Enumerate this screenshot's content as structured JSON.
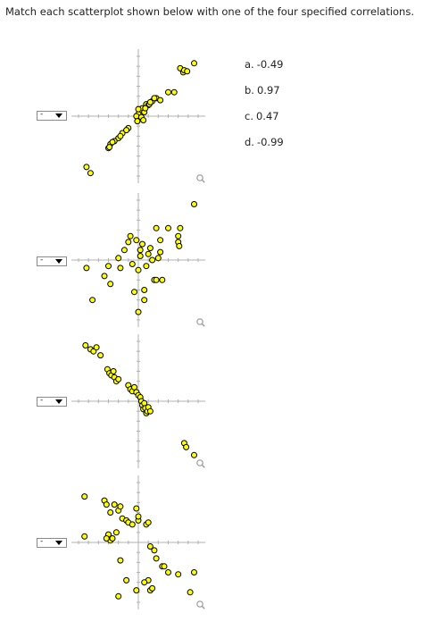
{
  "instruction": "Match each scatterplot shown below with one of the four specified correlations.",
  "style": {
    "dot_fill": "#ffff00",
    "dot_stroke": "#000000",
    "axis_color": "#b0b0b0",
    "zoom_icon_color": "#9a9a9a"
  },
  "plots": [
    {
      "dropdown_value": "-",
      "chart_data": {
        "type": "scatter",
        "title": "",
        "xlabel": "",
        "ylabel": "",
        "xlim": [
          -3,
          3
        ],
        "ylim": [
          -3,
          3
        ],
        "grid": false,
        "x": [
          2.1,
          2.25,
          2.3,
          2.45,
          2.8,
          1.5,
          1.8,
          0.9,
          1.1,
          0.7,
          0.4,
          0.5,
          0.2,
          0.1,
          0.0,
          -0.1,
          0.3,
          0.15,
          0.25,
          -0.05,
          0.0,
          0.35,
          0.55,
          0.6,
          0.8,
          -0.5,
          -0.8,
          -1.0,
          -1.2,
          -1.4,
          -1.5,
          -0.6,
          -0.9,
          -1.3,
          -1.45,
          -2.6,
          -2.4
        ],
        "y": [
          2.4,
          2.2,
          2.3,
          2.25,
          2.65,
          1.2,
          1.2,
          0.9,
          0.8,
          0.75,
          0.6,
          0.55,
          0.4,
          0.05,
          0.1,
          0.0,
          0.2,
          -0.05,
          -0.2,
          -0.25,
          0.35,
          0.4,
          0.6,
          0.7,
          0.9,
          -0.6,
          -0.85,
          -1.1,
          -1.25,
          -1.4,
          -1.6,
          -0.7,
          -1.0,
          -1.3,
          -1.55,
          -2.55,
          -2.85
        ]
      }
    },
    {
      "dropdown_value": "-",
      "chart_data": {
        "type": "scatter",
        "title": "",
        "xlabel": "",
        "ylabel": "",
        "xlim": [
          -3,
          3
        ],
        "ylim": [
          -3,
          3
        ],
        "grid": false,
        "x": [
          -2.6,
          -2.3,
          -1.7,
          -1.5,
          -1.4,
          -1.0,
          -0.9,
          -0.7,
          -0.5,
          -0.3,
          -0.1,
          0.0,
          0.1,
          0.2,
          0.4,
          0.5,
          0.6,
          0.7,
          0.8,
          0.9,
          1.0,
          1.1,
          1.2,
          1.5,
          2.0,
          2.0,
          2.05,
          2.1,
          0.3,
          -0.2,
          0.0,
          0.3,
          0.9,
          1.1,
          -0.4,
          0.1,
          2.8
        ],
        "y": [
          -0.4,
          -2.0,
          -0.8,
          -0.3,
          -1.2,
          0.1,
          -0.4,
          0.5,
          0.9,
          -0.2,
          1.0,
          -0.5,
          0.2,
          0.8,
          -0.3,
          0.3,
          0.6,
          0.0,
          -1.0,
          1.6,
          0.1,
          0.4,
          -1.0,
          1.6,
          1.2,
          0.9,
          0.7,
          1.6,
          -2.0,
          -1.6,
          -2.6,
          -1.5,
          -1.0,
          1.0,
          1.2,
          0.5,
          2.8
        ]
      }
    },
    {
      "dropdown_value": "-",
      "chart_data": {
        "type": "scatter",
        "title": "",
        "xlabel": "",
        "ylabel": "",
        "xlim": [
          -3,
          3
        ],
        "ylim": [
          -3,
          3
        ],
        "grid": false,
        "x": [
          -2.65,
          -2.4,
          -2.25,
          -2.1,
          -1.9,
          -1.55,
          -1.45,
          -1.35,
          -1.25,
          -1.2,
          -1.1,
          -1.0,
          -0.5,
          -0.4,
          -0.3,
          -0.2,
          -0.1,
          0.0,
          0.1,
          0.15,
          0.2,
          0.25,
          0.3,
          0.35,
          0.4,
          0.45,
          0.5,
          0.6,
          2.3,
          2.4,
          2.8
        ],
        "y": [
          2.8,
          2.6,
          2.5,
          2.7,
          2.3,
          1.6,
          1.4,
          1.3,
          1.5,
          1.2,
          1.0,
          1.1,
          0.8,
          0.6,
          0.5,
          0.7,
          0.45,
          0.3,
          0.2,
          0.0,
          -0.2,
          -0.4,
          -0.1,
          -0.35,
          -0.6,
          -0.5,
          -0.3,
          -0.5,
          -2.1,
          -2.3,
          -2.7
        ]
      }
    },
    {
      "dropdown_value": "-",
      "chart_data": {
        "type": "scatter",
        "title": "",
        "xlabel": "",
        "ylabel": "",
        "xlim": [
          -3,
          3
        ],
        "ylim": [
          -3,
          3
        ],
        "grid": false,
        "x": [
          -2.7,
          -2.7,
          -1.7,
          -1.6,
          -1.2,
          -1.0,
          -1.4,
          -1.5,
          -0.8,
          -1.1,
          -0.6,
          -0.9,
          -0.5,
          -0.3,
          -0.1,
          0.0,
          0.4,
          0.5,
          0.6,
          0.8,
          0.9,
          1.2,
          1.3,
          1.5,
          2.0,
          -1.4,
          -1.3,
          -0.9,
          -0.6,
          0.5,
          0.6,
          2.8,
          2.6,
          0.7,
          0.3,
          -0.1,
          -1.0,
          -1.6,
          0.0
        ],
        "y": [
          2.3,
          0.3,
          2.1,
          1.9,
          1.9,
          1.6,
          1.5,
          0.4,
          1.2,
          0.5,
          1.1,
          1.8,
          1.0,
          0.9,
          1.7,
          1.1,
          0.9,
          1.0,
          -0.2,
          -0.4,
          -0.8,
          -1.2,
          -1.2,
          -1.5,
          -1.6,
          0.1,
          0.2,
          -0.9,
          -1.9,
          -1.9,
          -2.4,
          -1.5,
          -2.5,
          -2.3,
          -2.0,
          -2.4,
          -2.7,
          0.2,
          1.3
        ]
      }
    }
  ],
  "options": [
    {
      "label": "a.",
      "value": "-0.49"
    },
    {
      "label": "b.",
      "value": "0.97"
    },
    {
      "label": "c.",
      "value": "0.47"
    },
    {
      "label": "d.",
      "value": "-0.99"
    }
  ]
}
